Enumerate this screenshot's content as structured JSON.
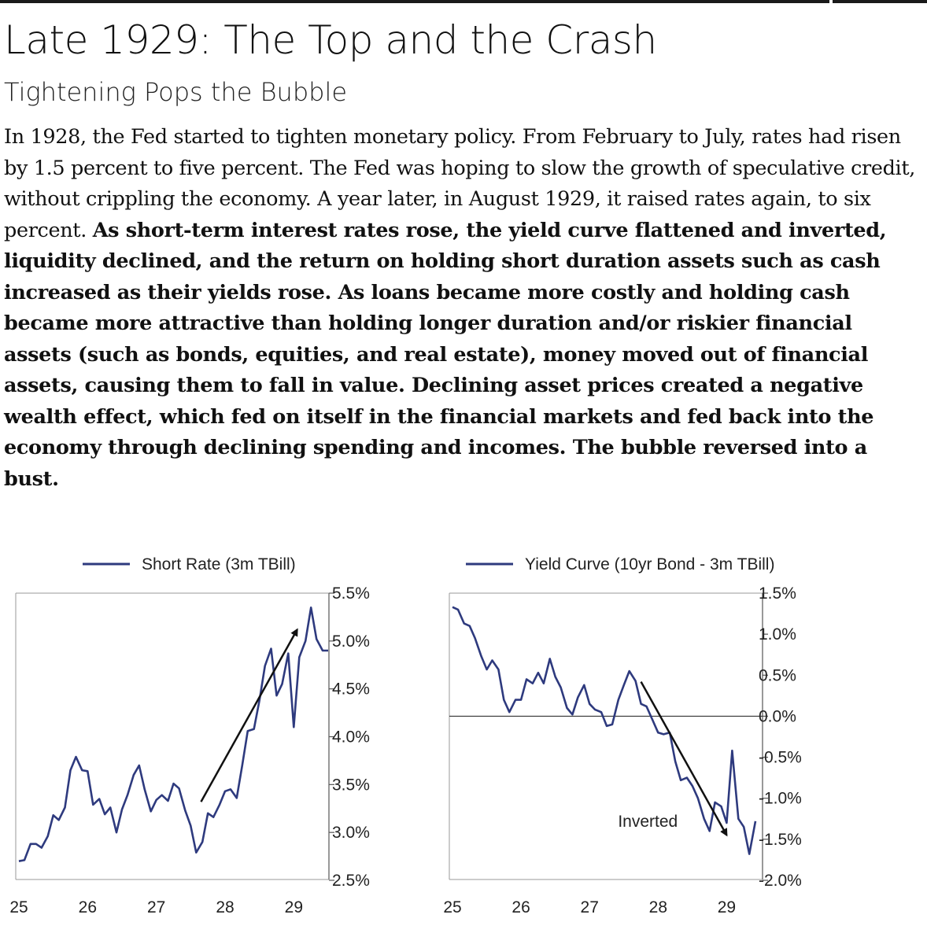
{
  "header": {
    "title": "Late 1929: The Top and the Crash",
    "subtitle": "Tightening Pops the Bubble"
  },
  "body": {
    "plain": "In 1928, the Fed started to tighten monetary policy. From February to July, rates had risen by 1.5 percent to five percent. The Fed was hoping to slow the growth of speculative credit, without crippling the economy. A year later, in August 1929, it raised rates again, to six percent. ",
    "bold": "As short-term interest rates rose, the yield curve flattened and inverted, liquidity declined, and the return on holding short duration assets such as cash increased as their yields rose. As loans became more costly and holding cash became more attractive than holding longer duration and/or riskier financial assets (such as bonds, equities, and real estate), money moved out of financial assets, causing them to fall in value. Declining asset prices created a negative wealth effect, which fed on itself in the financial markets and fed back into the economy through declining spending and incomes. The bubble reversed into a bust."
  },
  "colors": {
    "series": "#2e3a7e",
    "arrow": "#111111",
    "axis": "#555555"
  },
  "chart_data": [
    {
      "type": "line",
      "legend": "Short Rate (3m TBill)",
      "title": "",
      "xlabel": "",
      "ylabel": "",
      "x_ticks": [
        "25",
        "26",
        "27",
        "28",
        "29"
      ],
      "x_tick_values": [
        1925,
        1926,
        1927,
        1928,
        1929
      ],
      "xlim": [
        1925,
        1929.5
      ],
      "y_ticks": [
        "5.5%",
        "5.0%",
        "4.5%",
        "4.0%",
        "3.5%",
        "3.0%",
        "2.5%"
      ],
      "y_tick_values": [
        5.5,
        5.0,
        4.5,
        4.0,
        3.5,
        3.0,
        2.5
      ],
      "ylim": [
        2.5,
        5.5
      ],
      "y_axis_side": "right",
      "series": [
        {
          "name": "Short Rate (3m TBill)",
          "x": [
            1925.0,
            1925.08,
            1925.17,
            1925.25,
            1925.33,
            1925.42,
            1925.5,
            1925.58,
            1925.67,
            1925.75,
            1925.83,
            1925.92,
            1926.0,
            1926.08,
            1926.17,
            1926.25,
            1926.33,
            1926.42,
            1926.5,
            1926.58,
            1926.67,
            1926.75,
            1926.83,
            1926.92,
            1927.0,
            1927.08,
            1927.17,
            1927.25,
            1927.33,
            1927.42,
            1927.5,
            1927.58,
            1927.67,
            1927.75,
            1927.83,
            1927.92,
            1928.0,
            1928.08,
            1928.17,
            1928.25,
            1928.33,
            1928.42,
            1928.5,
            1928.58,
            1928.67,
            1928.75,
            1928.83,
            1928.92,
            1929.0,
            1929.08,
            1929.17,
            1929.25,
            1929.33,
            1929.42,
            1929.5
          ],
          "values": [
            2.7,
            2.71,
            2.88,
            2.88,
            2.84,
            2.96,
            3.18,
            3.13,
            3.26,
            3.65,
            3.79,
            3.65,
            3.64,
            3.29,
            3.35,
            3.19,
            3.26,
            3.0,
            3.24,
            3.39,
            3.6,
            3.7,
            3.45,
            3.22,
            3.34,
            3.39,
            3.33,
            3.51,
            3.46,
            3.23,
            3.07,
            2.79,
            2.9,
            3.2,
            3.16,
            3.29,
            3.43,
            3.45,
            3.36,
            3.7,
            4.06,
            4.08,
            4.38,
            4.74,
            4.92,
            4.43,
            4.55,
            4.87,
            4.1,
            4.83,
            5.0,
            5.35,
            5.02,
            4.9,
            4.9
          ]
        }
      ],
      "annotations": [
        {
          "type": "arrow",
          "from": [
            1927.65,
            3.32
          ],
          "to": [
            1929.05,
            5.12
          ]
        }
      ]
    },
    {
      "type": "line",
      "legend": "Yield Curve (10yr Bond - 3m TBill)",
      "title": "",
      "xlabel": "",
      "ylabel": "",
      "x_ticks": [
        "25",
        "26",
        "27",
        "28",
        "29"
      ],
      "x_tick_values": [
        1925,
        1926,
        1927,
        1928,
        1929
      ],
      "xlim": [
        1925,
        1929.5
      ],
      "y_ticks": [
        "1.5%",
        "1.0%",
        "0.5%",
        "0.0%",
        "-0.5%",
        "-1.0%",
        "-1.5%",
        "-2.0%"
      ],
      "y_tick_values": [
        1.5,
        1.0,
        0.5,
        0.0,
        -0.5,
        -1.0,
        -1.5,
        -2.0
      ],
      "ylim": [
        -2.0,
        1.5
      ],
      "y_axis_side": "right",
      "zero_line": true,
      "series": [
        {
          "name": "Yield Curve (10yr Bond - 3m TBill)",
          "x": [
            1925.0,
            1925.08,
            1925.17,
            1925.25,
            1925.33,
            1925.42,
            1925.5,
            1925.58,
            1925.67,
            1925.75,
            1925.83,
            1925.92,
            1926.0,
            1926.08,
            1926.17,
            1926.25,
            1926.33,
            1926.42,
            1926.5,
            1926.58,
            1926.67,
            1926.75,
            1926.83,
            1926.92,
            1927.0,
            1927.08,
            1927.17,
            1927.25,
            1927.33,
            1927.42,
            1927.5,
            1927.58,
            1927.67,
            1927.75,
            1927.83,
            1927.92,
            1928.0,
            1928.08,
            1928.17,
            1928.25,
            1928.33,
            1928.42,
            1928.5,
            1928.58,
            1928.67,
            1928.75,
            1928.83,
            1928.92,
            1929.0,
            1929.08,
            1929.17,
            1929.25,
            1929.33,
            1929.42
          ],
          "values": [
            1.33,
            1.3,
            1.13,
            1.1,
            0.95,
            0.73,
            0.57,
            0.68,
            0.57,
            0.2,
            0.05,
            0.2,
            0.2,
            0.45,
            0.4,
            0.53,
            0.4,
            0.7,
            0.48,
            0.35,
            0.1,
            0.02,
            0.23,
            0.38,
            0.15,
            0.08,
            0.05,
            -0.12,
            -0.1,
            0.2,
            0.38,
            0.55,
            0.43,
            0.15,
            0.12,
            -0.05,
            -0.2,
            -0.22,
            -0.2,
            -0.55,
            -0.78,
            -0.75,
            -0.85,
            -1.0,
            -1.25,
            -1.4,
            -1.05,
            -1.1,
            -1.3,
            -0.42,
            -1.25,
            -1.35,
            -1.68,
            -1.28
          ]
        }
      ],
      "annotations": [
        {
          "type": "arrow",
          "from": [
            1927.75,
            0.42
          ],
          "to": [
            1929.0,
            -1.45
          ]
        },
        {
          "type": "text",
          "text": "Inverted",
          "at": [
            1927.85,
            -1.35
          ]
        }
      ]
    }
  ]
}
